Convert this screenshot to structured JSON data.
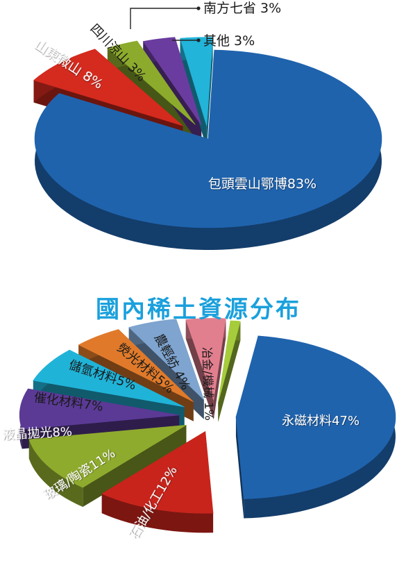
{
  "middle_title": "國內稀土資源分布",
  "chart_data": [
    {
      "type": "pie",
      "title": "",
      "labels": [
        "包頭雲山鄂博",
        "山東微山",
        "四川涼山",
        "南方七省",
        "其他"
      ],
      "values": [
        83,
        8,
        3,
        3,
        3
      ],
      "value_labels": [
        "包頭雲山鄂博83%",
        "山東微山 8%",
        "四川涼山 3%",
        "南方七省 3%",
        "其他 3%"
      ],
      "colors": [
        "#1f63ad",
        "#d52a1e",
        "#8cab2c",
        "#6b3c9f",
        "#22b4d9"
      ],
      "exploded": true,
      "style": "3d"
    },
    {
      "type": "pie",
      "title": "",
      "labels": [
        "永磁材料",
        "石油/化工",
        "玻璃/陶瓷",
        "液晶拋光",
        "催化材料",
        "儲氫材料",
        "熒光材料",
        "農輕紡",
        "冶金/機械"
      ],
      "values": [
        47,
        12,
        11,
        8,
        7,
        5,
        5,
        4,
        1
      ],
      "value_labels": [
        "永磁材料47%",
        "石油/化工12%",
        "玻璃/陶瓷11%",
        "液晶拋光8%",
        "催化材料7%",
        "儲氫材料5%",
        "熒光材料5%",
        "農輕紡 4%",
        "冶金/機械 1%"
      ],
      "colors": [
        "#1f63ad",
        "#c8241c",
        "#8fab2e",
        "#5b3a96",
        "#20b3d8",
        "#e07a2a",
        "#7ea4cf",
        "#e27f8f",
        "#a6cc3c"
      ],
      "exploded": true,
      "style": "3d"
    }
  ]
}
